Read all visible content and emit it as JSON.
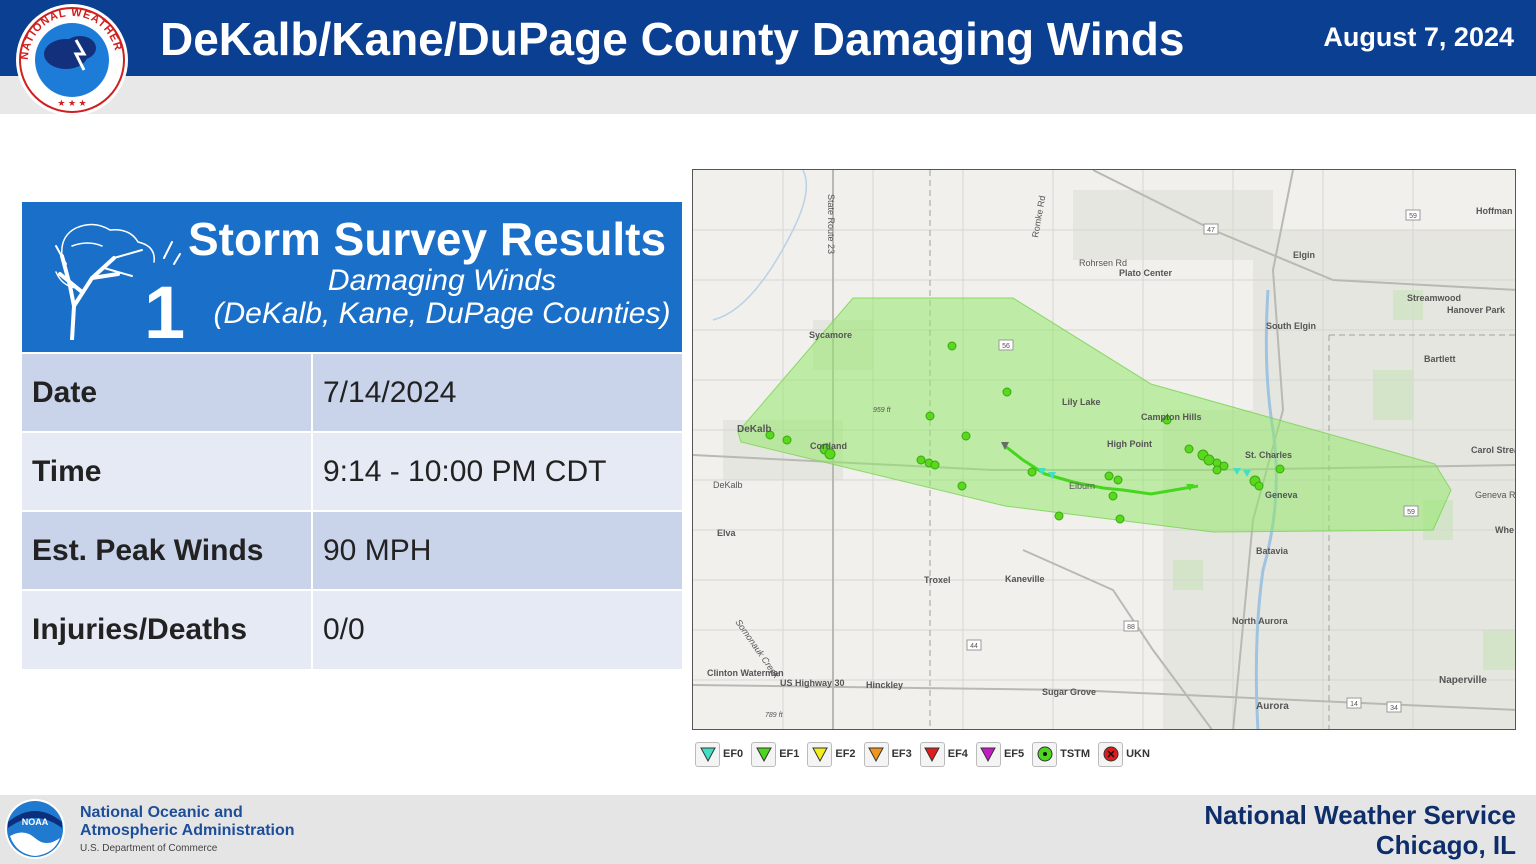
{
  "header": {
    "title": "DeKalb/Kane/DuPage County Damaging Winds",
    "date": "August 7, 2024",
    "logo_text": "NATIONAL WEATHER SERVICE",
    "brand_color": "#0a3f91"
  },
  "card": {
    "title": "Storm Survey Results",
    "subtitle_line1": "Damaging Winds",
    "subtitle_line2": "(DeKalb, Kane, DuPage Counties)",
    "icon_number": "1",
    "icon": "wind-tree-icon",
    "rows": [
      {
        "label": "Date",
        "value": "7/14/2024"
      },
      {
        "label": "Time",
        "value": "9:14 - 10:00 PM CDT"
      },
      {
        "label": "Est. Peak Winds",
        "value": "90 MPH"
      },
      {
        "label": "Injuries/Deaths",
        "value": "0/0"
      }
    ]
  },
  "map": {
    "place_labels": [
      "Hoffman Estates",
      "Elgin",
      "Plato Center",
      "Rohrsen Rd",
      "Romke Rd",
      "State Route 23",
      "Streamwood",
      "Hanover Park",
      "South Elgin",
      "Sycamore",
      "Bartlett",
      "Lily Lake",
      "Campton Hills",
      "High Point",
      "St. Charles",
      "Carol Strea",
      "Geneva Rd",
      "DeKalb",
      "Cortland",
      "Elburn",
      "Geneva",
      "Elva",
      "Batavia",
      "Troxel",
      "Kaneville",
      "Whe",
      "North Aurora",
      "Clinton Waterman",
      "US Highway 30",
      "Hinckley",
      "Sugar Grove",
      "Naperville",
      "Aurora",
      "Somonauk Creek",
      "959 ft",
      "789 ft"
    ],
    "route_shields": [
      "59",
      "47",
      "56",
      "88",
      "44",
      "14",
      "34",
      "59"
    ]
  },
  "legend": [
    {
      "label": "EF0",
      "color": "#3fe0c5",
      "icon": "triangle-down-icon"
    },
    {
      "label": "EF1",
      "color": "#4cd61e",
      "icon": "triangle-down-icon"
    },
    {
      "label": "EF2",
      "color": "#f2ee1b",
      "icon": "triangle-down-icon"
    },
    {
      "label": "EF3",
      "color": "#f0961b",
      "icon": "triangle-down-icon"
    },
    {
      "label": "EF4",
      "color": "#e01b1b",
      "icon": "triangle-down-icon"
    },
    {
      "label": "EF5",
      "color": "#c41bc4",
      "icon": "triangle-down-icon"
    },
    {
      "label": "TSTM",
      "color": "#4cd61e",
      "icon": "circle-dot-icon"
    },
    {
      "label": "UKN",
      "color": "#e01b1b",
      "icon": "circle-x-icon"
    }
  ],
  "footer": {
    "noaa_line1": "National Oceanic and",
    "noaa_line2": "Atmospheric Administration",
    "noaa_line3": "U.S. Department of Commerce",
    "noaa_logo_text": "NOAA",
    "office_line1": "National Weather Service",
    "office_line2": "Chicago, IL"
  }
}
